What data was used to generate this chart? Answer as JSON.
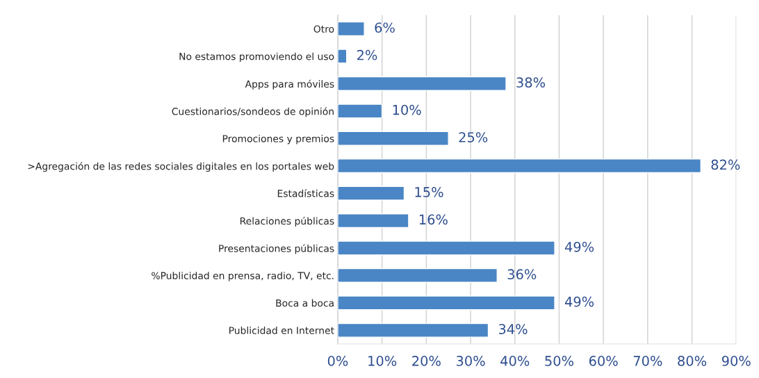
{
  "chart_data": {
    "type": "bar",
    "orientation": "horizontal",
    "categories": [
      "Otro",
      "No estamos promoviendo el uso",
      "Apps para móviles",
      "Cuestionarios/sondeos de opinión",
      "Promociones y premios",
      ">Agregación de las redes sociales digitales en los portales web",
      "Estadísticas",
      "Relaciones públicas",
      "Presentaciones públicas",
      "%Publicidad en prensa, radio, TV, etc.",
      "Boca a boca",
      "Publicidad en Internet"
    ],
    "values": [
      6,
      2,
      38,
      10,
      25,
      82,
      15,
      16,
      49,
      36,
      49,
      34
    ],
    "value_labels": [
      "6%",
      "2%",
      "38%",
      "10%",
      "25%",
      "82%",
      "15%",
      "16%",
      "49%",
      "36%",
      "49%",
      "34%"
    ],
    "color": "#4a86c5",
    "xlim": [
      0,
      90
    ],
    "xticks": [
      {
        "value": 0,
        "label": "0%"
      },
      {
        "value": 10,
        "label": "10%"
      },
      {
        "value": 20,
        "label": "20%"
      },
      {
        "value": 30,
        "label": "30%"
      },
      {
        "value": 40,
        "label": "40%"
      },
      {
        "value": 50,
        "label": "50%"
      },
      {
        "value": 60,
        "label": "60%"
      },
      {
        "value": 70,
        "label": "70%"
      },
      {
        "value": 80,
        "label": "80%"
      },
      {
        "value": 90,
        "label": "90%"
      }
    ],
    "grid": "x"
  }
}
